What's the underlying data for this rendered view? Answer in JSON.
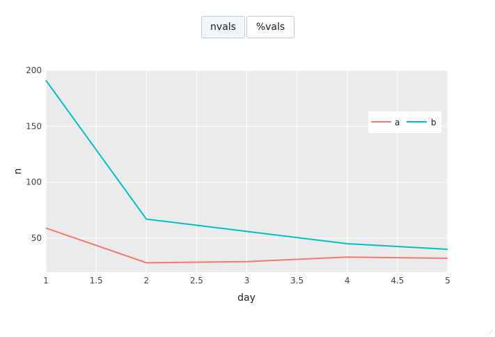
{
  "buttons": [
    {
      "label": "nvals",
      "active": true
    },
    {
      "label": "%vals",
      "active": false
    }
  ],
  "chart_data": {
    "type": "line",
    "x": [
      1,
      2,
      3,
      4,
      5
    ],
    "series": [
      {
        "name": "a",
        "color": "#f8766d",
        "values": [
          59,
          28,
          29,
          33,
          32
        ]
      },
      {
        "name": "b",
        "color": "#00bfc4",
        "values": [
          191,
          67,
          56,
          45,
          40
        ]
      }
    ],
    "xlabel": "day",
    "ylabel": "n",
    "xlim": [
      1,
      5
    ],
    "ylim": [
      19.5,
      200
    ],
    "xticks": [
      "1",
      "1.5",
      "2",
      "2.5",
      "3",
      "3.5",
      "4",
      "4.5",
      "5"
    ],
    "yticks": [
      "50",
      "100",
      "150",
      "200"
    ],
    "grid": true,
    "background": "#ebebeb",
    "legend": "top-right"
  }
}
